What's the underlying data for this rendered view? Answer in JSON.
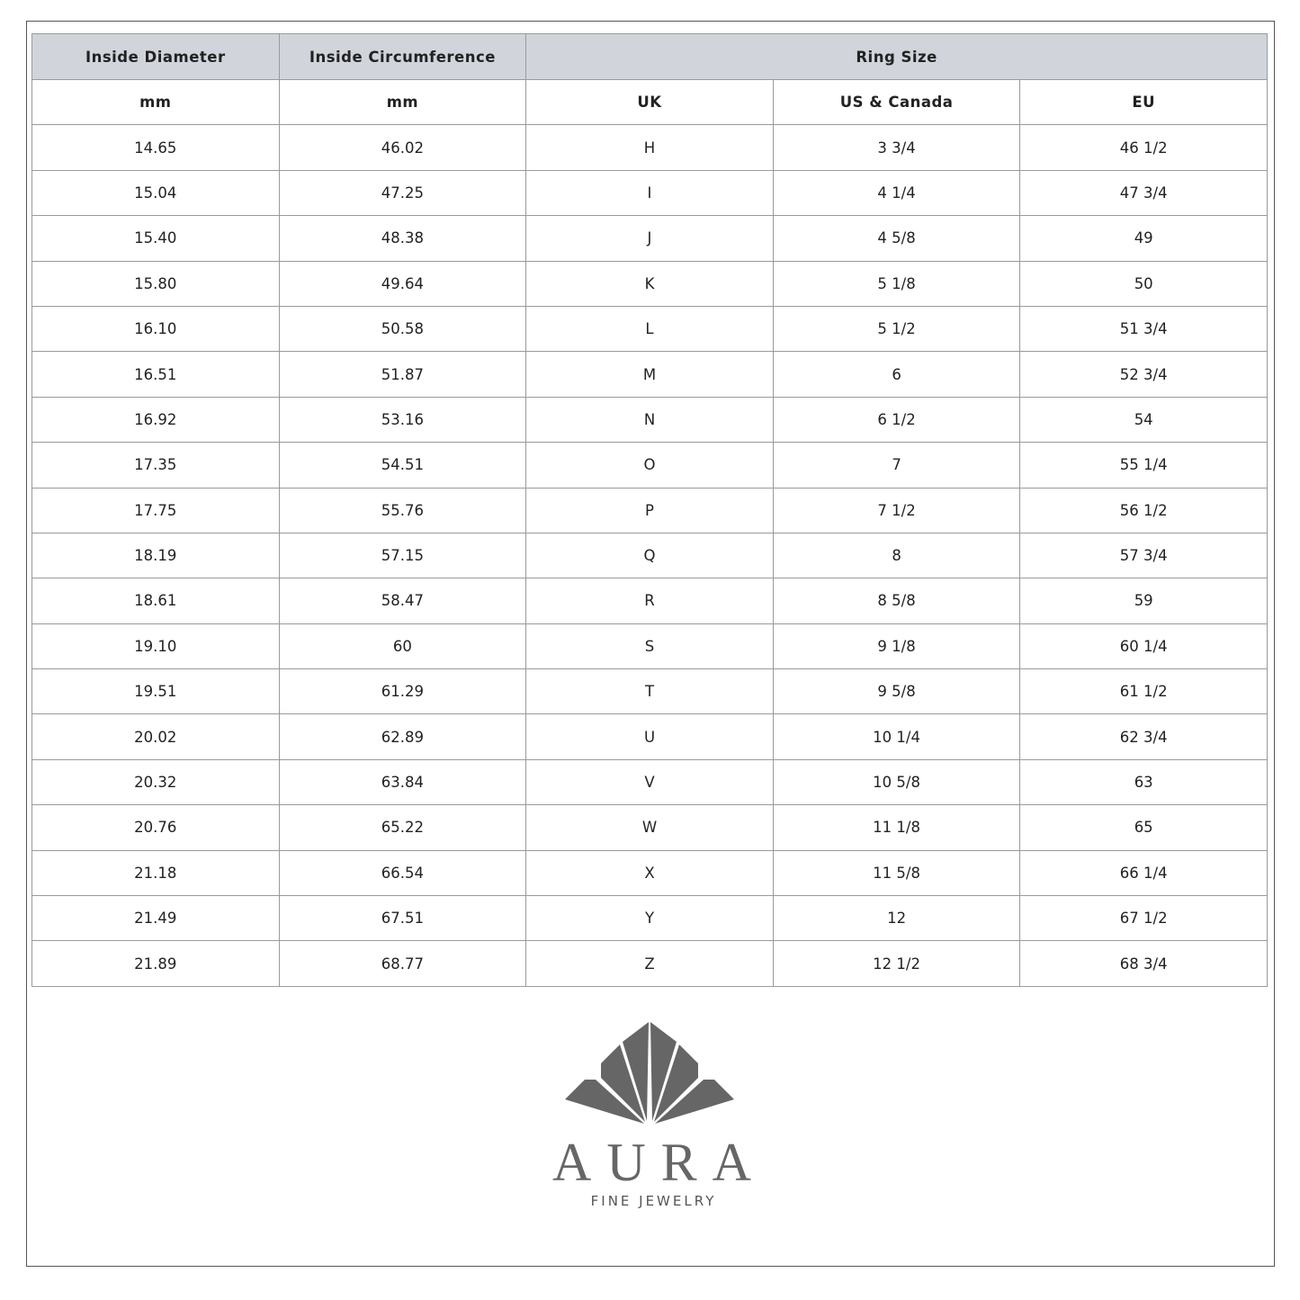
{
  "table": {
    "headers_top": [
      "Inside Diameter",
      "Inside Circumference",
      "Ring Size"
    ],
    "headers_sub": [
      "mm",
      "mm",
      "UK",
      "US & Canada",
      "EU"
    ],
    "rows": [
      [
        "14.65",
        "46.02",
        "H",
        "3 3/4",
        "46 1/2"
      ],
      [
        "15.04",
        "47.25",
        "I",
        "4 1/4",
        "47 3/4"
      ],
      [
        "15.40",
        "48.38",
        "J",
        "4 5/8",
        "49"
      ],
      [
        "15.80",
        "49.64",
        "K",
        "5 1/8",
        "50"
      ],
      [
        "16.10",
        "50.58",
        "L",
        "5 1/2",
        "51 3/4"
      ],
      [
        "16.51",
        "51.87",
        "M",
        "6",
        "52 3/4"
      ],
      [
        "16.92",
        "53.16",
        "N",
        "6 1/2",
        "54"
      ],
      [
        "17.35",
        "54.51",
        "O",
        "7",
        "55 1/4"
      ],
      [
        "17.75",
        "55.76",
        "P",
        "7 1/2",
        "56 1/2"
      ],
      [
        "18.19",
        "57.15",
        "Q",
        "8",
        "57 3/4"
      ],
      [
        "18.61",
        "58.47",
        "R",
        "8 5/8",
        "59"
      ],
      [
        "19.10",
        "60",
        "S",
        "9 1/8",
        "60 1/4"
      ],
      [
        "19.51",
        "61.29",
        "T",
        "9 5/8",
        "61 1/2"
      ],
      [
        "20.02",
        "62.89",
        "U",
        "10 1/4",
        "62 3/4"
      ],
      [
        "20.32",
        "63.84",
        "V",
        "10 5/8",
        "63"
      ],
      [
        "20.76",
        "65.22",
        "W",
        "11 1/8",
        "65"
      ],
      [
        "21.18",
        "66.54",
        "X",
        "11 5/8",
        "66 1/4"
      ],
      [
        "21.49",
        "67.51",
        "Y",
        "12",
        "67 1/2"
      ],
      [
        "21.89",
        "68.77",
        "Z",
        "12 1/2",
        "68 3/4"
      ]
    ]
  },
  "logo": {
    "name": "AURA",
    "tagline": "FINE JEWELRY",
    "color": "#666666"
  },
  "colors": {
    "header_bg": "#d1d5db",
    "border": "#9a9a9a"
  }
}
